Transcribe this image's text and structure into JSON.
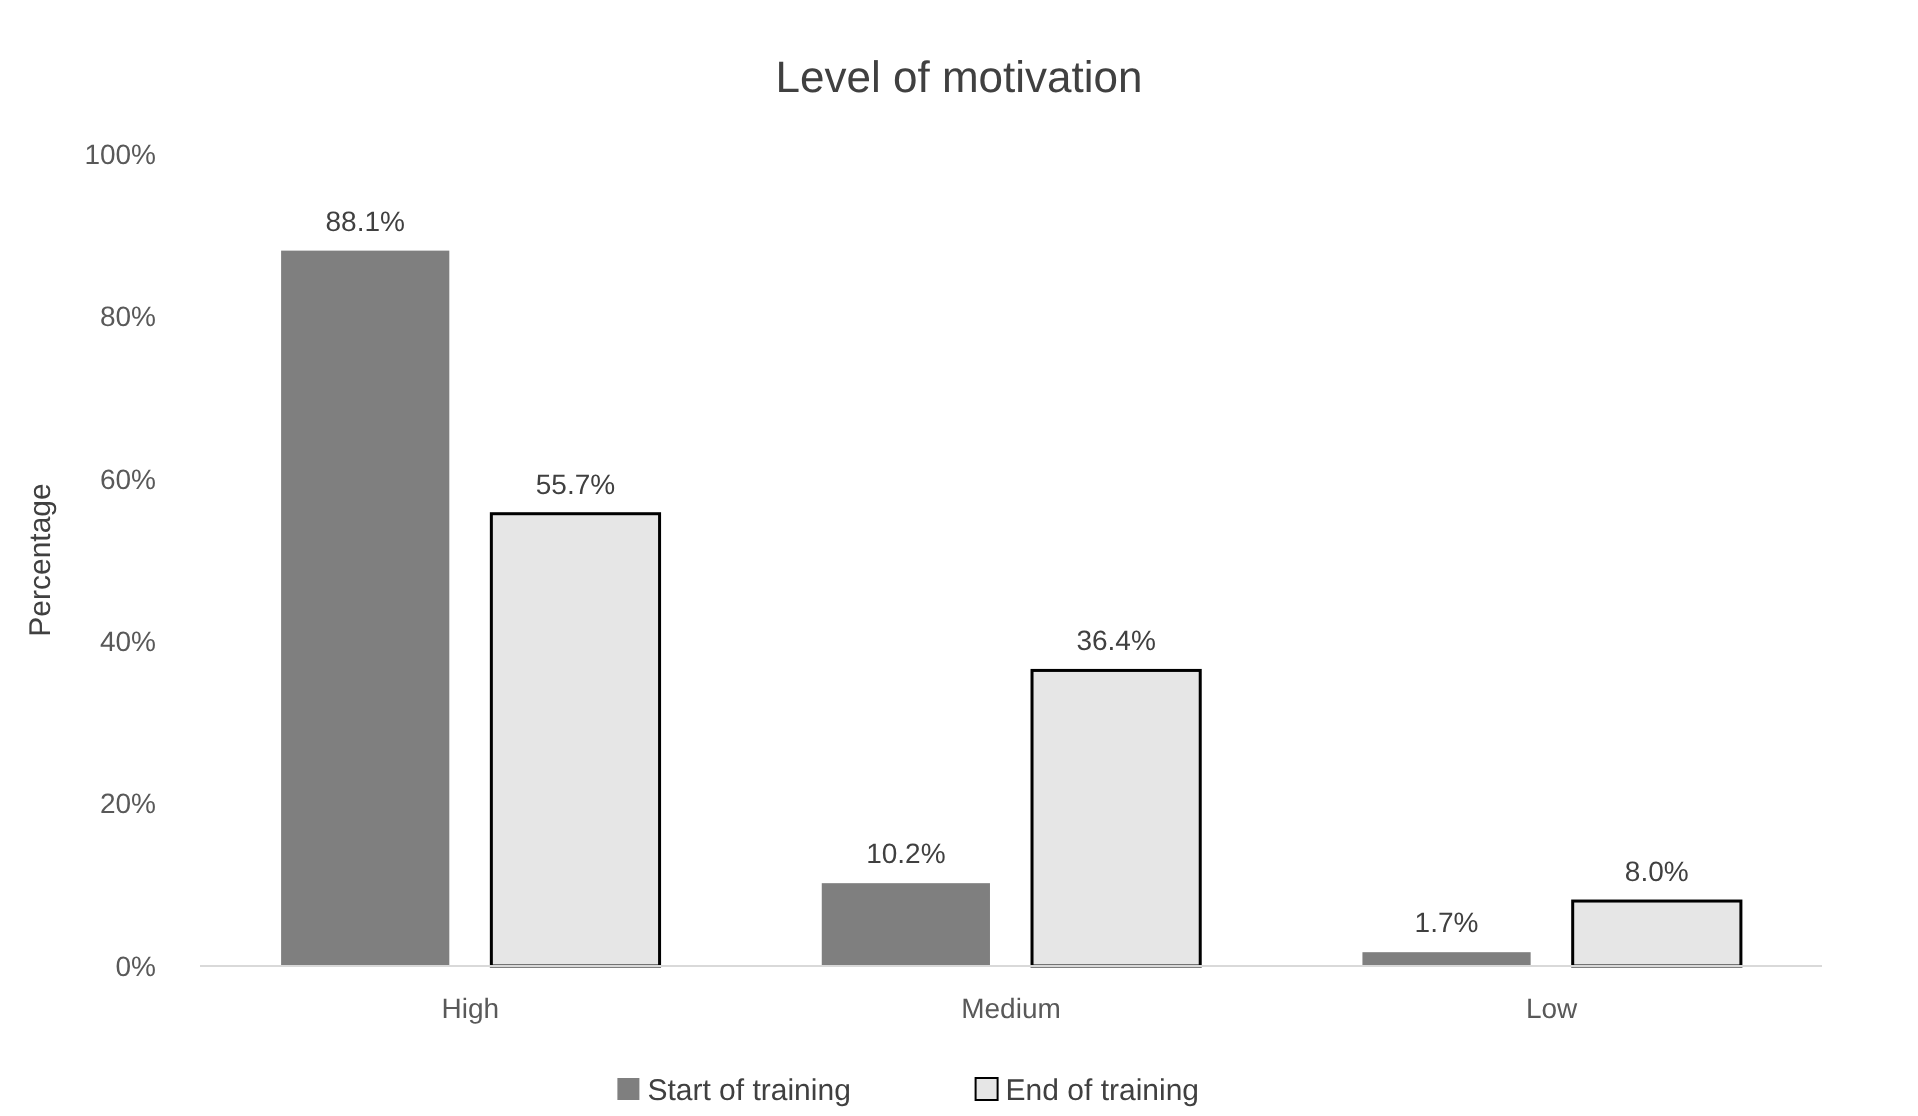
{
  "chart_data": {
    "type": "bar",
    "title": "Level of motivation",
    "ylabel": "Percentage",
    "categories": [
      "High",
      "Medium",
      "Low"
    ],
    "series": [
      {
        "name": "Start of training",
        "color": "#7f7f7f",
        "values": [
          88.1,
          10.2,
          1.7
        ],
        "value_labels": [
          "88.1%",
          "10.2%",
          "1.7%"
        ]
      },
      {
        "name": "End of training",
        "color": "#e6e6e6",
        "values": [
          55.7,
          36.4,
          8.0
        ],
        "value_labels": [
          "55.7%",
          "36.4%",
          "8.0%"
        ]
      }
    ],
    "ylim": [
      0,
      100
    ],
    "yticks": [
      {
        "value": 0,
        "label": "0%"
      },
      {
        "value": 20,
        "label": "20%"
      },
      {
        "value": 40,
        "label": "40%"
      },
      {
        "value": 60,
        "label": "60%"
      },
      {
        "value": 80,
        "label": "80%"
      },
      {
        "value": 100,
        "label": "100%"
      }
    ],
    "grid": false,
    "legend": "bottom"
  }
}
